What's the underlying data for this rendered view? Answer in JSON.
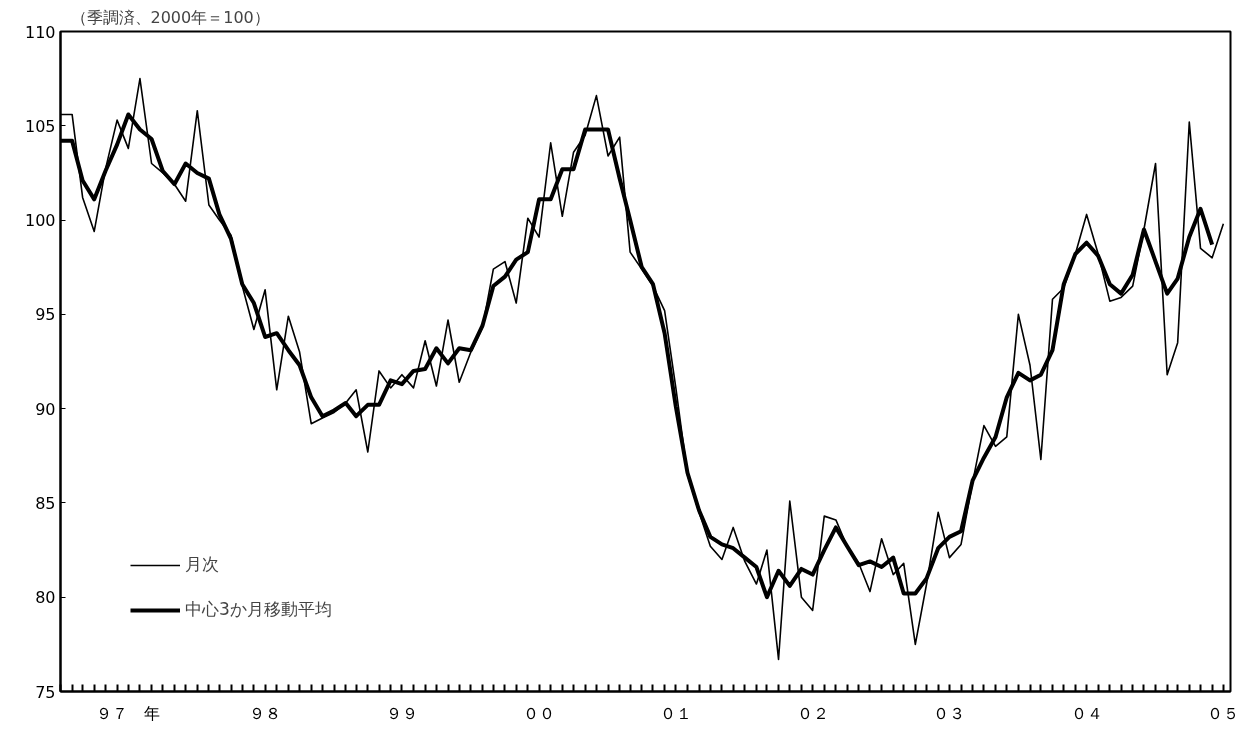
{
  "chart_data": {
    "type": "line",
    "ylabel": "（季調済、2000年＝100）",
    "x": [
      "1997-01",
      "1997-02",
      "1997-03",
      "1997-04",
      "1997-05",
      "1997-06",
      "1997-07",
      "1997-08",
      "1997-09",
      "1997-10",
      "1997-11",
      "1997-12",
      "1998-01",
      "1998-02",
      "1998-03",
      "1998-04",
      "1998-05",
      "1998-06",
      "1998-07",
      "1998-08",
      "1998-09",
      "1998-10",
      "1998-11",
      "1998-12",
      "1999-01",
      "1999-02",
      "1999-03",
      "1999-04",
      "1999-05",
      "1999-06",
      "1999-07",
      "1999-08",
      "1999-09",
      "1999-10",
      "1999-11",
      "1999-12",
      "2000-01",
      "2000-02",
      "2000-03",
      "2000-04",
      "2000-05",
      "2000-06",
      "2000-07",
      "2000-08",
      "2000-09",
      "2000-10",
      "2000-11",
      "2000-12",
      "2001-01",
      "2001-02",
      "2001-03",
      "2001-04",
      "2001-05",
      "2001-06",
      "2001-07",
      "2001-08",
      "2001-09",
      "2001-10",
      "2001-11",
      "2001-12",
      "2002-01",
      "2002-02",
      "2002-03",
      "2002-04",
      "2002-05",
      "2002-06",
      "2002-07",
      "2002-08",
      "2002-09",
      "2002-10",
      "2002-11",
      "2002-12",
      "2003-01",
      "2003-02",
      "2003-03",
      "2003-04",
      "2003-05",
      "2003-06",
      "2003-07",
      "2003-08",
      "2003-09",
      "2003-10",
      "2003-11",
      "2003-12",
      "2004-01",
      "2004-02",
      "2004-03",
      "2004-04",
      "2004-05",
      "2004-06",
      "2004-07",
      "2004-08",
      "2004-09",
      "2004-10",
      "2004-11",
      "2004-12",
      "2005-01",
      "2005-02",
      "2005-03",
      "2005-04",
      "2005-05",
      "2005-06",
      "2005-07"
    ],
    "series": [
      {
        "name": "月次",
        "color": "#000000",
        "values": [
          105.6,
          105.6,
          101.2,
          99.4,
          102.7,
          105.3,
          103.8,
          107.5,
          103.0,
          102.5,
          101.9,
          101.0,
          105.8,
          100.8,
          100.0,
          99.2,
          96.5,
          94.2,
          96.3,
          91.0,
          94.9,
          93.0,
          89.2,
          89.5,
          89.8,
          90.3,
          91.0,
          87.7,
          92.0,
          91.1,
          91.8,
          91.1,
          93.6,
          91.2,
          94.7,
          91.4,
          93.0,
          94.3,
          97.4,
          97.8,
          95.6,
          100.1,
          99.1,
          104.1,
          100.2,
          103.6,
          104.5,
          106.6,
          103.4,
          104.4,
          98.3,
          97.4,
          96.5,
          95.2,
          91.1,
          86.5,
          84.5,
          82.7,
          82.0,
          83.7,
          81.9,
          80.7,
          82.5,
          76.7,
          85.1,
          80.0,
          79.3,
          84.3,
          84.1,
          82.7,
          81.8,
          80.3,
          83.1,
          81.2,
          81.8,
          77.5,
          80.7,
          84.5,
          82.1,
          82.8,
          86.1,
          89.1,
          88.0,
          88.5,
          95.0,
          92.3,
          87.3,
          95.8,
          96.4,
          98.2,
          100.3,
          98.2,
          95.7,
          95.9,
          96.5,
          99.5,
          103.0,
          91.8,
          93.5,
          105.2,
          98.5,
          98.0,
          99.8
        ]
      },
      {
        "name": "中心3か月移動平均",
        "color": "#000000",
        "values": [
          104.2,
          104.2,
          102.1,
          101.1,
          102.6,
          104.0,
          105.6,
          104.8,
          104.3,
          102.6,
          101.9,
          103.0,
          102.5,
          102.2,
          100.3,
          99.0,
          96.6,
          95.6,
          93.8,
          94.0,
          93.1,
          92.3,
          90.6,
          89.6,
          89.9,
          90.3,
          89.6,
          90.2,
          90.2,
          91.5,
          91.3,
          92.0,
          92.1,
          93.2,
          92.4,
          93.2,
          93.1,
          94.4,
          96.5,
          97.0,
          97.9,
          98.3,
          101.1,
          101.1,
          102.7,
          102.7,
          104.8,
          104.8,
          104.8,
          102.2,
          100.0,
          97.5,
          96.6,
          94.0,
          90.1,
          86.6,
          84.6,
          83.2,
          82.8,
          82.6,
          82.1,
          81.6,
          80.0,
          81.4,
          80.6,
          81.5,
          81.2,
          82.5,
          83.7,
          82.7,
          81.7,
          81.9,
          81.6,
          82.1,
          80.2,
          80.2,
          81.0,
          82.6,
          83.2,
          83.5,
          86.2,
          87.4,
          88.5,
          90.6,
          91.9,
          91.5,
          91.8,
          93.1,
          96.6,
          98.2,
          98.8,
          98.1,
          96.6,
          96.1,
          97.1,
          99.5,
          97.8,
          96.1,
          96.9,
          99.1,
          100.6,
          98.7,
          null
        ]
      }
    ],
    "xlim": [
      "1997-01-01",
      "2005-07-20"
    ],
    "xticks": [
      {
        "value": "1997-01",
        "label": null
      },
      {
        "value": "1997-02",
        "label": null
      },
      {
        "value": "1997-03",
        "label": null
      },
      {
        "value": "1997-04",
        "label": null
      },
      {
        "value": "1997-05",
        "label": null
      },
      {
        "value": "1997-06",
        "label": null
      },
      {
        "value": "1997-07",
        "label": "９７　年"
      },
      {
        "value": "1997-08",
        "label": null
      },
      {
        "value": "1997-09",
        "label": null
      },
      {
        "value": "1997-10",
        "label": null
      },
      {
        "value": "1997-11",
        "label": null
      },
      {
        "value": "1997-12",
        "label": null
      },
      {
        "value": "1998-01",
        "label": null
      },
      {
        "value": "1998-02",
        "label": null
      },
      {
        "value": "1998-03",
        "label": null
      },
      {
        "value": "1998-04",
        "label": null
      },
      {
        "value": "1998-05",
        "label": null
      },
      {
        "value": "1998-06",
        "label": null
      },
      {
        "value": "1998-07",
        "label": "９８"
      },
      {
        "value": "1998-08",
        "label": null
      },
      {
        "value": "1998-09",
        "label": null
      },
      {
        "value": "1998-10",
        "label": null
      },
      {
        "value": "1998-11",
        "label": null
      },
      {
        "value": "1998-12",
        "label": null
      },
      {
        "value": "1999-01",
        "label": null
      },
      {
        "value": "1999-02",
        "label": null
      },
      {
        "value": "1999-03",
        "label": null
      },
      {
        "value": "1999-04",
        "label": null
      },
      {
        "value": "1999-05",
        "label": null
      },
      {
        "value": "1999-06",
        "label": null
      },
      {
        "value": "1999-07",
        "label": "９９"
      },
      {
        "value": "1999-08",
        "label": null
      },
      {
        "value": "1999-09",
        "label": null
      },
      {
        "value": "1999-10",
        "label": null
      },
      {
        "value": "1999-11",
        "label": null
      },
      {
        "value": "1999-12",
        "label": null
      },
      {
        "value": "2000-01",
        "label": null
      },
      {
        "value": "2000-02",
        "label": null
      },
      {
        "value": "2000-03",
        "label": null
      },
      {
        "value": "2000-04",
        "label": null
      },
      {
        "value": "2000-05",
        "label": null
      },
      {
        "value": "2000-06",
        "label": null
      },
      {
        "value": "2000-07",
        "label": "００"
      },
      {
        "value": "2000-08",
        "label": null
      },
      {
        "value": "2000-09",
        "label": null
      },
      {
        "value": "2000-10",
        "label": null
      },
      {
        "value": "2000-11",
        "label": null
      },
      {
        "value": "2000-12",
        "label": null
      },
      {
        "value": "2001-01",
        "label": null
      },
      {
        "value": "2001-02",
        "label": null
      },
      {
        "value": "2001-03",
        "label": null
      },
      {
        "value": "2001-04",
        "label": null
      },
      {
        "value": "2001-05",
        "label": null
      },
      {
        "value": "2001-06",
        "label": null
      },
      {
        "value": "2001-07",
        "label": "０１"
      },
      {
        "value": "2001-08",
        "label": null
      },
      {
        "value": "2001-09",
        "label": null
      },
      {
        "value": "2001-10",
        "label": null
      },
      {
        "value": "2001-11",
        "label": null
      },
      {
        "value": "2001-12",
        "label": null
      },
      {
        "value": "2002-01",
        "label": null
      },
      {
        "value": "2002-02",
        "label": null
      },
      {
        "value": "2002-03",
        "label": null
      },
      {
        "value": "2002-04",
        "label": null
      },
      {
        "value": "2002-05",
        "label": null
      },
      {
        "value": "2002-06",
        "label": null
      },
      {
        "value": "2002-07",
        "label": "０２"
      },
      {
        "value": "2002-08",
        "label": null
      },
      {
        "value": "2002-09",
        "label": null
      },
      {
        "value": "2002-10",
        "label": null
      },
      {
        "value": "2002-11",
        "label": null
      },
      {
        "value": "2002-12",
        "label": null
      },
      {
        "value": "2003-01",
        "label": null
      },
      {
        "value": "2003-02",
        "label": null
      },
      {
        "value": "2003-03",
        "label": null
      },
      {
        "value": "2003-04",
        "label": null
      },
      {
        "value": "2003-05",
        "label": null
      },
      {
        "value": "2003-06",
        "label": null
      },
      {
        "value": "2003-07",
        "label": "０３"
      },
      {
        "value": "2003-08",
        "label": null
      },
      {
        "value": "2003-09",
        "label": null
      },
      {
        "value": "2003-10",
        "label": null
      },
      {
        "value": "2003-11",
        "label": null
      },
      {
        "value": "2003-12",
        "label": null
      },
      {
        "value": "2004-01",
        "label": null
      },
      {
        "value": "2004-02",
        "label": null
      },
      {
        "value": "2004-03",
        "label": null
      },
      {
        "value": "2004-04",
        "label": null
      },
      {
        "value": "2004-05",
        "label": null
      },
      {
        "value": "2004-06",
        "label": null
      },
      {
        "value": "2004-07",
        "label": "０４"
      },
      {
        "value": "2004-08",
        "label": null
      },
      {
        "value": "2004-09",
        "label": null
      },
      {
        "value": "2004-10",
        "label": null
      },
      {
        "value": "2004-11",
        "label": null
      },
      {
        "value": "2004-12",
        "label": null
      },
      {
        "value": "2005-01",
        "label": null
      },
      {
        "value": "2005-02",
        "label": null
      },
      {
        "value": "2005-03",
        "label": null
      },
      {
        "value": "2005-04",
        "label": null
      },
      {
        "value": "2005-05",
        "label": null
      },
      {
        "value": "2005-06",
        "label": null
      },
      {
        "value": "2005-07",
        "label": "０５"
      }
    ],
    "ylim": [
      75,
      110
    ],
    "yticks": [
      75,
      80,
      85,
      90,
      95,
      100,
      105,
      110
    ],
    "grid": false,
    "legend": "bottom left",
    "marker": "none",
    "line_style": "solid"
  }
}
